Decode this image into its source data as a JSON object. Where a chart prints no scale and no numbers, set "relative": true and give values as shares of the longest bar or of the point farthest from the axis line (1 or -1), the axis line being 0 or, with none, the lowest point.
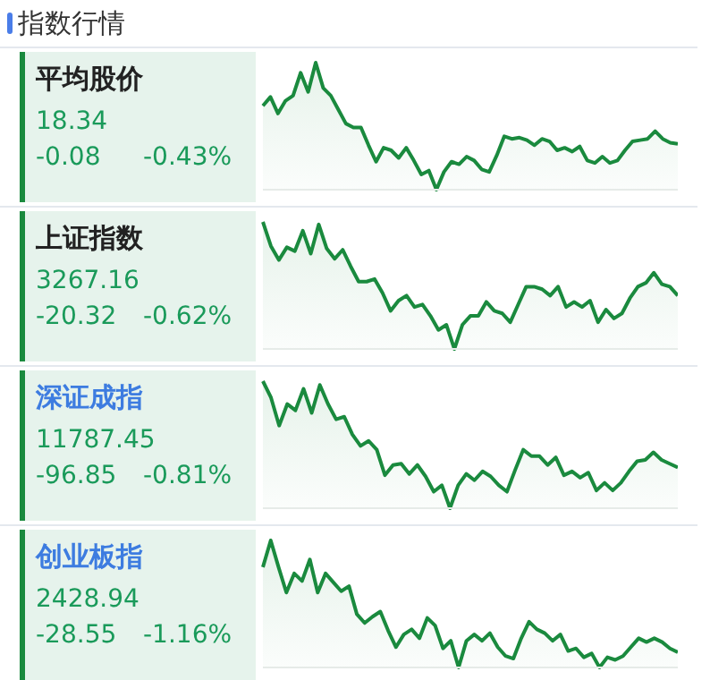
{
  "chart_data": [
    {
      "type": "other",
      "title": "指数行情"
    },
    {
      "type": "area",
      "title": "平均股价",
      "annotations": [
        "18.34",
        "-0.08",
        "-0.43%"
      ],
      "relative": true,
      "color": "#1a8a3e",
      "categories": [
        null,
        null,
        null,
        null,
        null,
        null,
        null,
        null,
        null,
        null,
        null,
        null,
        null,
        null,
        null,
        null,
        null,
        null,
        null,
        null,
        null,
        null,
        null,
        null,
        null,
        null,
        null,
        null,
        null,
        null,
        null,
        null,
        null,
        null,
        null,
        null,
        null,
        null,
        null,
        null,
        null,
        null,
        null,
        null,
        null,
        null,
        null,
        null,
        null,
        null,
        null,
        null,
        null,
        null,
        null,
        null
      ],
      "values": [
        0.66,
        0.73,
        0.6,
        0.7,
        0.74,
        0.92,
        0.77,
        1.0,
        0.8,
        0.74,
        0.63,
        0.52,
        0.49,
        0.49,
        0.35,
        0.22,
        0.33,
        0.31,
        0.25,
        0.33,
        0.23,
        0.12,
        0.15,
        0,
        0.14,
        0.22,
        0.2,
        0.26,
        0.23,
        0.16,
        0.14,
        0.27,
        0.42,
        0.4,
        0.41,
        0.39,
        0.35,
        0.4,
        0.38,
        0.31,
        0.33,
        0.3,
        0.34,
        0.23,
        0.21,
        0.26,
        0.21,
        0.23,
        0.31,
        0.38,
        0.39,
        0.4,
        0.46,
        0.4,
        0.37,
        0.36
      ]
    },
    {
      "type": "area",
      "title": "上证指数",
      "annotations": [
        "3267.16",
        "-20.32",
        "-0.62%"
      ],
      "relative": true,
      "color": "#1a8a3e",
      "categories": [
        null,
        null,
        null,
        null,
        null,
        null,
        null,
        null,
        null,
        null,
        null,
        null,
        null,
        null,
        null,
        null,
        null,
        null,
        null,
        null,
        null,
        null,
        null,
        null,
        null,
        null,
        null,
        null,
        null,
        null,
        null,
        null,
        null,
        null,
        null,
        null,
        null,
        null,
        null,
        null,
        null,
        null,
        null,
        null,
        null,
        null,
        null,
        null,
        null,
        null,
        null,
        null,
        null
      ],
      "values": [
        1.0,
        0.81,
        0.7,
        0.8,
        0.77,
        0.93,
        0.75,
        0.98,
        0.79,
        0.71,
        0.78,
        0.65,
        0.53,
        0.53,
        0.55,
        0.44,
        0.3,
        0.38,
        0.42,
        0.33,
        0.35,
        0.26,
        0.15,
        0.19,
        0,
        0.19,
        0.26,
        0.26,
        0.37,
        0.3,
        0.28,
        0.21,
        0.35,
        0.49,
        0.49,
        0.47,
        0.42,
        0.49,
        0.33,
        0.37,
        0.33,
        0.38,
        0.21,
        0.31,
        0.24,
        0.28,
        0.4,
        0.49,
        0.52,
        0.6,
        0.51,
        0.49,
        0.42
      ]
    },
    {
      "type": "area",
      "title": "深证成指",
      "annotations": [
        "11787.45",
        "-96.85",
        "-0.81%"
      ],
      "relative": true,
      "color": "#1a8a3e",
      "categories": [
        null,
        null,
        null,
        null,
        null,
        null,
        null,
        null,
        null,
        null,
        null,
        null,
        null,
        null,
        null,
        null,
        null,
        null,
        null,
        null,
        null,
        null,
        null,
        null,
        null,
        null,
        null,
        null,
        null,
        null,
        null,
        null,
        null,
        null,
        null,
        null,
        null,
        null,
        null,
        null,
        null,
        null,
        null,
        null,
        null,
        null,
        null,
        null,
        null,
        null,
        null,
        null
      ],
      "values": [
        1.0,
        0.87,
        0.65,
        0.82,
        0.77,
        0.94,
        0.75,
        0.97,
        0.82,
        0.7,
        0.72,
        0.58,
        0.49,
        0.53,
        0.46,
        0.26,
        0.34,
        0.35,
        0.27,
        0.34,
        0.25,
        0.13,
        0.18,
        0,
        0.18,
        0.27,
        0.22,
        0.29,
        0.25,
        0.18,
        0.13,
        0.3,
        0.46,
        0.41,
        0.41,
        0.34,
        0.4,
        0.26,
        0.29,
        0.24,
        0.28,
        0.14,
        0.2,
        0.14,
        0.2,
        0.29,
        0.37,
        0.38,
        0.44,
        0.38,
        0.35,
        0.32
      ]
    },
    {
      "type": "area",
      "title": "创业板指",
      "annotations": [
        "2428.94",
        "-28.55",
        "-1.16%"
      ],
      "relative": true,
      "color": "#1a8a3e",
      "categories": [
        null,
        null,
        null,
        null,
        null,
        null,
        null,
        null,
        null,
        null,
        null,
        null,
        null,
        null,
        null,
        null,
        null,
        null,
        null,
        null,
        null,
        null,
        null,
        null,
        null,
        null,
        null,
        null,
        null,
        null,
        null,
        null,
        null,
        null,
        null,
        null,
        null,
        null,
        null,
        null,
        null,
        null,
        null,
        null,
        null,
        null,
        null,
        null,
        null,
        null,
        null,
        null,
        null,
        null
      ],
      "values": [
        0.79,
        1.0,
        0.79,
        0.59,
        0.74,
        0.68,
        0.85,
        0.59,
        0.74,
        0.67,
        0.6,
        0.64,
        0.42,
        0.35,
        0.4,
        0.44,
        0.29,
        0.16,
        0.26,
        0.3,
        0.23,
        0.39,
        0.33,
        0.15,
        0.21,
        0,
        0.21,
        0.26,
        0.21,
        0.27,
        0.16,
        0.09,
        0.07,
        0.23,
        0.36,
        0.3,
        0.27,
        0.21,
        0.26,
        0.13,
        0.15,
        0.08,
        0.11,
        0,
        0.08,
        0.06,
        0.09,
        0.16,
        0.23,
        0.2,
        0.23,
        0.2,
        0.15,
        0.12
      ]
    }
  ]
}
